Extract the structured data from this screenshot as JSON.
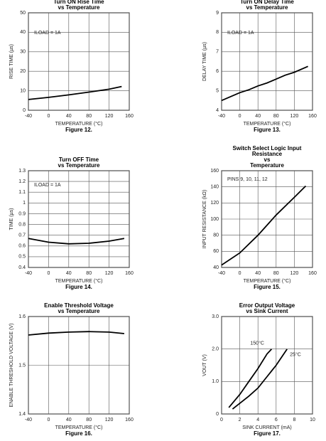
{
  "chart_data": [
    {
      "type": "line",
      "title": [
        "Turn ON Rise Time",
        "vs Temperature"
      ],
      "xlabel": "TEMPERATURE (°C)",
      "ylabel": "RISE TIME (µs)",
      "caption": "Figure 12.",
      "annotation": "ILOAD = 1A",
      "xlim": [
        -40,
        160
      ],
      "xticks": [
        -40,
        0,
        40,
        80,
        120,
        160
      ],
      "ylim": [
        0,
        50
      ],
      "yticks": [
        0,
        10,
        20,
        30,
        40,
        50
      ],
      "grid": true,
      "series": [
        {
          "color": "#000000",
          "x": [
            -40,
            0,
            40,
            80,
            120,
            145
          ],
          "values": [
            5.5,
            6.6,
            7.9,
            9.3,
            10.8,
            12.2
          ]
        }
      ]
    },
    {
      "type": "line",
      "title": [
        "Turn ON Delay Time",
        "vs Temperature"
      ],
      "xlabel": "TEMPERATURE (°C)",
      "ylabel": "DELAY TIME (µs)",
      "caption": "Figure 13.",
      "annotation": "ILOAD = 1A",
      "xlim": [
        -40,
        160
      ],
      "xticks": [
        -40,
        0,
        40,
        80,
        120,
        160
      ],
      "ylim": [
        4,
        9
      ],
      "yticks": [
        4,
        5,
        6,
        7,
        8,
        9
      ],
      "grid": true,
      "series": [
        {
          "color": "#000000",
          "x": [
            -40,
            -20,
            0,
            20,
            40,
            60,
            80,
            100,
            120,
            150
          ],
          "values": [
            4.5,
            4.7,
            4.9,
            5.05,
            5.25,
            5.4,
            5.6,
            5.8,
            5.95,
            6.25
          ]
        }
      ]
    },
    {
      "type": "line",
      "title": [
        "Turn OFF Time",
        "vs Temperature"
      ],
      "xlabel": "TEMPERATURE (°C)",
      "ylabel": "TIME (µs)",
      "caption": "Figure 14.",
      "annotation": "ILOAD = 1A",
      "xlim": [
        -40,
        160
      ],
      "xticks": [
        -40,
        0,
        40,
        80,
        120,
        160
      ],
      "ylim": [
        0.4,
        1.3
      ],
      "yticks": [
        0.4,
        0.5,
        0.6,
        0.7,
        0.8,
        0.9,
        1.0,
        1.1,
        1.2,
        1.3
      ],
      "grid": true,
      "series": [
        {
          "color": "#000000",
          "x": [
            -40,
            0,
            40,
            80,
            120,
            150
          ],
          "values": [
            0.67,
            0.635,
            0.62,
            0.625,
            0.645,
            0.67
          ]
        }
      ]
    },
    {
      "type": "line",
      "title": [
        "Switch Select Logic Input",
        "Resistance",
        "vs",
        "Temperature"
      ],
      "xlabel": "TEMPERATURE (°C)",
      "ylabel": "INPUT RESISTANCE (kΩ)",
      "caption": "Figure 15.",
      "annotation": "PINS 9, 10, 11, 12",
      "xlim": [
        -40,
        160
      ],
      "xticks": [
        -40,
        0,
        40,
        80,
        120,
        160
      ],
      "ylim": [
        40,
        160
      ],
      "yticks": [
        40,
        60,
        80,
        100,
        120,
        140,
        160
      ],
      "grid": true,
      "series": [
        {
          "color": "#000000",
          "x": [
            -40,
            0,
            40,
            80,
            120,
            145
          ],
          "values": [
            43,
            58,
            80,
            105,
            127,
            141
          ]
        }
      ]
    },
    {
      "type": "line",
      "title": [
        "Enable Threshold Voltage",
        "vs Temperature"
      ],
      "xlabel": "TEMPERATURE (°C)",
      "ylabel": "ENABLE THRESHOLD VOLTAGE (V)",
      "caption": "Figure 16.",
      "xlim": [
        -40,
        160
      ],
      "xticks": [
        -40,
        0,
        40,
        80,
        120,
        160
      ],
      "ylim": [
        1.4,
        1.6
      ],
      "yticks": [
        1.4,
        1.5,
        1.6
      ],
      "grid": true,
      "series": [
        {
          "color": "#000000",
          "x": [
            -40,
            0,
            40,
            80,
            120,
            150
          ],
          "values": [
            1.562,
            1.566,
            1.568,
            1.569,
            1.568,
            1.565
          ]
        }
      ]
    },
    {
      "type": "line",
      "title": [
        "Error Output Voltage",
        "vs Sink Current"
      ],
      "xlabel": "SINK CURRENT (mA)",
      "ylabel": "VOUT (V)",
      "caption": "Figure 17.",
      "xlim": [
        0,
        10
      ],
      "xticks": [
        0,
        2,
        4,
        6,
        8,
        10
      ],
      "ylim": [
        0,
        3
      ],
      "yticks": [
        0,
        {
          "value": 1,
          "label": "1.0"
        },
        {
          "value": 2,
          "label": "2.0"
        },
        {
          "value": 3,
          "label": "3.0"
        }
      ],
      "grid": true,
      "series": [
        {
          "name": "150°C",
          "color": "#000000",
          "x": [
            0.8,
            2,
            3,
            4,
            5,
            5.5
          ],
          "values": [
            0.2,
            0.6,
            1.0,
            1.4,
            1.85,
            2.0
          ]
        },
        {
          "name": "25°C",
          "color": "#000000",
          "x": [
            1.2,
            3,
            4,
            5,
            6,
            7.2
          ],
          "values": [
            0.15,
            0.55,
            0.8,
            1.15,
            1.5,
            2.0
          ]
        }
      ]
    }
  ]
}
